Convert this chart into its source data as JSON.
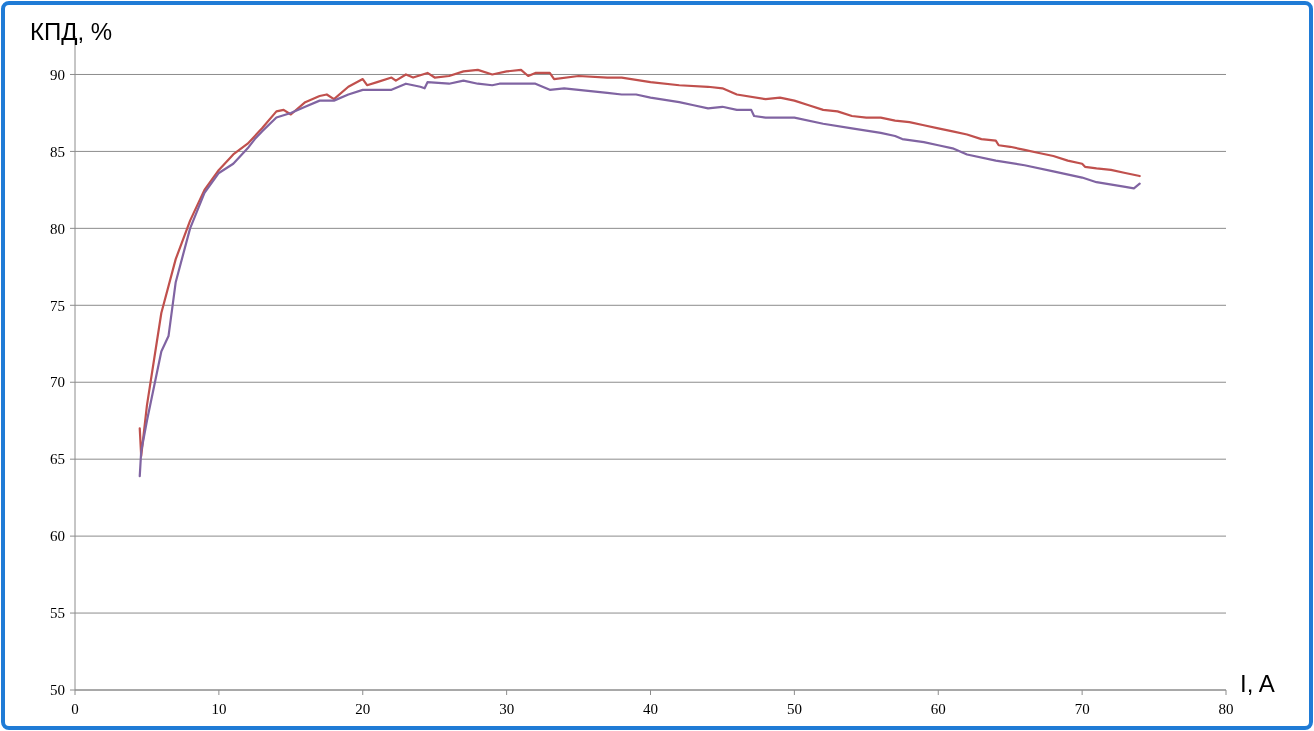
{
  "chart_data": {
    "type": "line",
    "ylabel": "КПД, %",
    "xlabel": "I, A",
    "xlim": [
      0,
      80
    ],
    "xticks": [
      0,
      10,
      20,
      30,
      40,
      50,
      60,
      70,
      80
    ],
    "ylim": [
      50,
      92.5
    ],
    "yticks": [
      50,
      55,
      60,
      65,
      70,
      75,
      80,
      85,
      90
    ],
    "grid": "y",
    "marker": "none",
    "line_style": "solid",
    "series": [
      {
        "color": "#c0504d",
        "x": [
          4.5,
          4.6,
          5,
          6,
          7,
          8,
          9,
          10,
          11,
          12,
          13,
          14,
          14.5,
          15,
          16,
          17,
          17.5,
          18,
          19,
          20,
          20.3,
          21,
          22,
          22.3,
          23,
          23.5,
          24.5,
          25,
          26,
          27,
          28,
          29,
          30,
          31,
          31.5,
          32,
          33,
          33.3,
          35,
          37,
          38,
          40,
          42,
          44,
          45,
          46,
          48,
          49,
          50,
          51,
          52,
          53,
          54,
          55,
          56,
          57,
          58,
          59,
          60,
          61,
          62,
          63,
          64,
          64.2,
          65,
          66,
          67,
          68,
          69,
          70,
          70.2,
          71,
          72,
          73,
          74
        ],
        "values": [
          67.0,
          65.2,
          68.5,
          74.5,
          78,
          80.5,
          82.5,
          83.8,
          84.8,
          85.5,
          86.5,
          87.6,
          87.7,
          87.4,
          88.2,
          88.6,
          88.7,
          88.4,
          89.2,
          89.7,
          89.3,
          89.5,
          89.8,
          89.6,
          90.0,
          89.8,
          90.1,
          89.8,
          89.9,
          90.2,
          90.3,
          90.0,
          90.2,
          90.3,
          89.9,
          90.1,
          90.1,
          89.7,
          89.9,
          89.8,
          89.8,
          89.5,
          89.3,
          89.2,
          89.1,
          88.7,
          88.4,
          88.5,
          88.3,
          88.0,
          87.7,
          87.6,
          87.3,
          87.2,
          87.2,
          87.0,
          86.9,
          86.7,
          86.5,
          86.3,
          86.1,
          85.8,
          85.7,
          85.4,
          85.3,
          85.1,
          84.9,
          84.7,
          84.4,
          84.2,
          84.0,
          83.9,
          83.8,
          83.6,
          83.4
        ]
      },
      {
        "color": "#8064a2",
        "x": [
          4.5,
          4.6,
          5,
          6,
          6.5,
          7,
          8,
          9,
          10,
          11,
          12,
          12.5,
          13,
          14,
          15,
          16,
          17,
          18,
          19,
          20,
          22,
          23,
          24,
          24.3,
          24.5,
          26,
          27,
          28,
          29,
          29.5,
          32,
          33,
          34,
          35,
          36,
          37,
          38,
          39,
          40,
          42,
          43,
          44,
          45,
          46,
          47,
          47.2,
          48,
          50,
          52,
          54,
          56,
          57,
          57.5,
          59,
          60,
          61,
          62,
          64,
          66,
          68,
          70,
          71,
          73,
          73.6,
          74
        ],
        "values": [
          63.9,
          65.5,
          67.5,
          72,
          73,
          76.5,
          80,
          82.3,
          83.6,
          84.2,
          85.2,
          85.8,
          86.3,
          87.2,
          87.5,
          87.9,
          88.3,
          88.3,
          88.7,
          89.0,
          89.0,
          89.4,
          89.2,
          89.1,
          89.5,
          89.4,
          89.6,
          89.4,
          89.3,
          89.4,
          89.4,
          89.0,
          89.1,
          89.0,
          88.9,
          88.8,
          88.7,
          88.7,
          88.5,
          88.2,
          88.0,
          87.8,
          87.9,
          87.7,
          87.7,
          87.3,
          87.2,
          87.2,
          86.8,
          86.5,
          86.2,
          86.0,
          85.8,
          85.6,
          85.4,
          85.2,
          84.8,
          84.4,
          84.1,
          83.7,
          83.3,
          83.0,
          82.7,
          82.6,
          82.9
        ]
      }
    ]
  }
}
